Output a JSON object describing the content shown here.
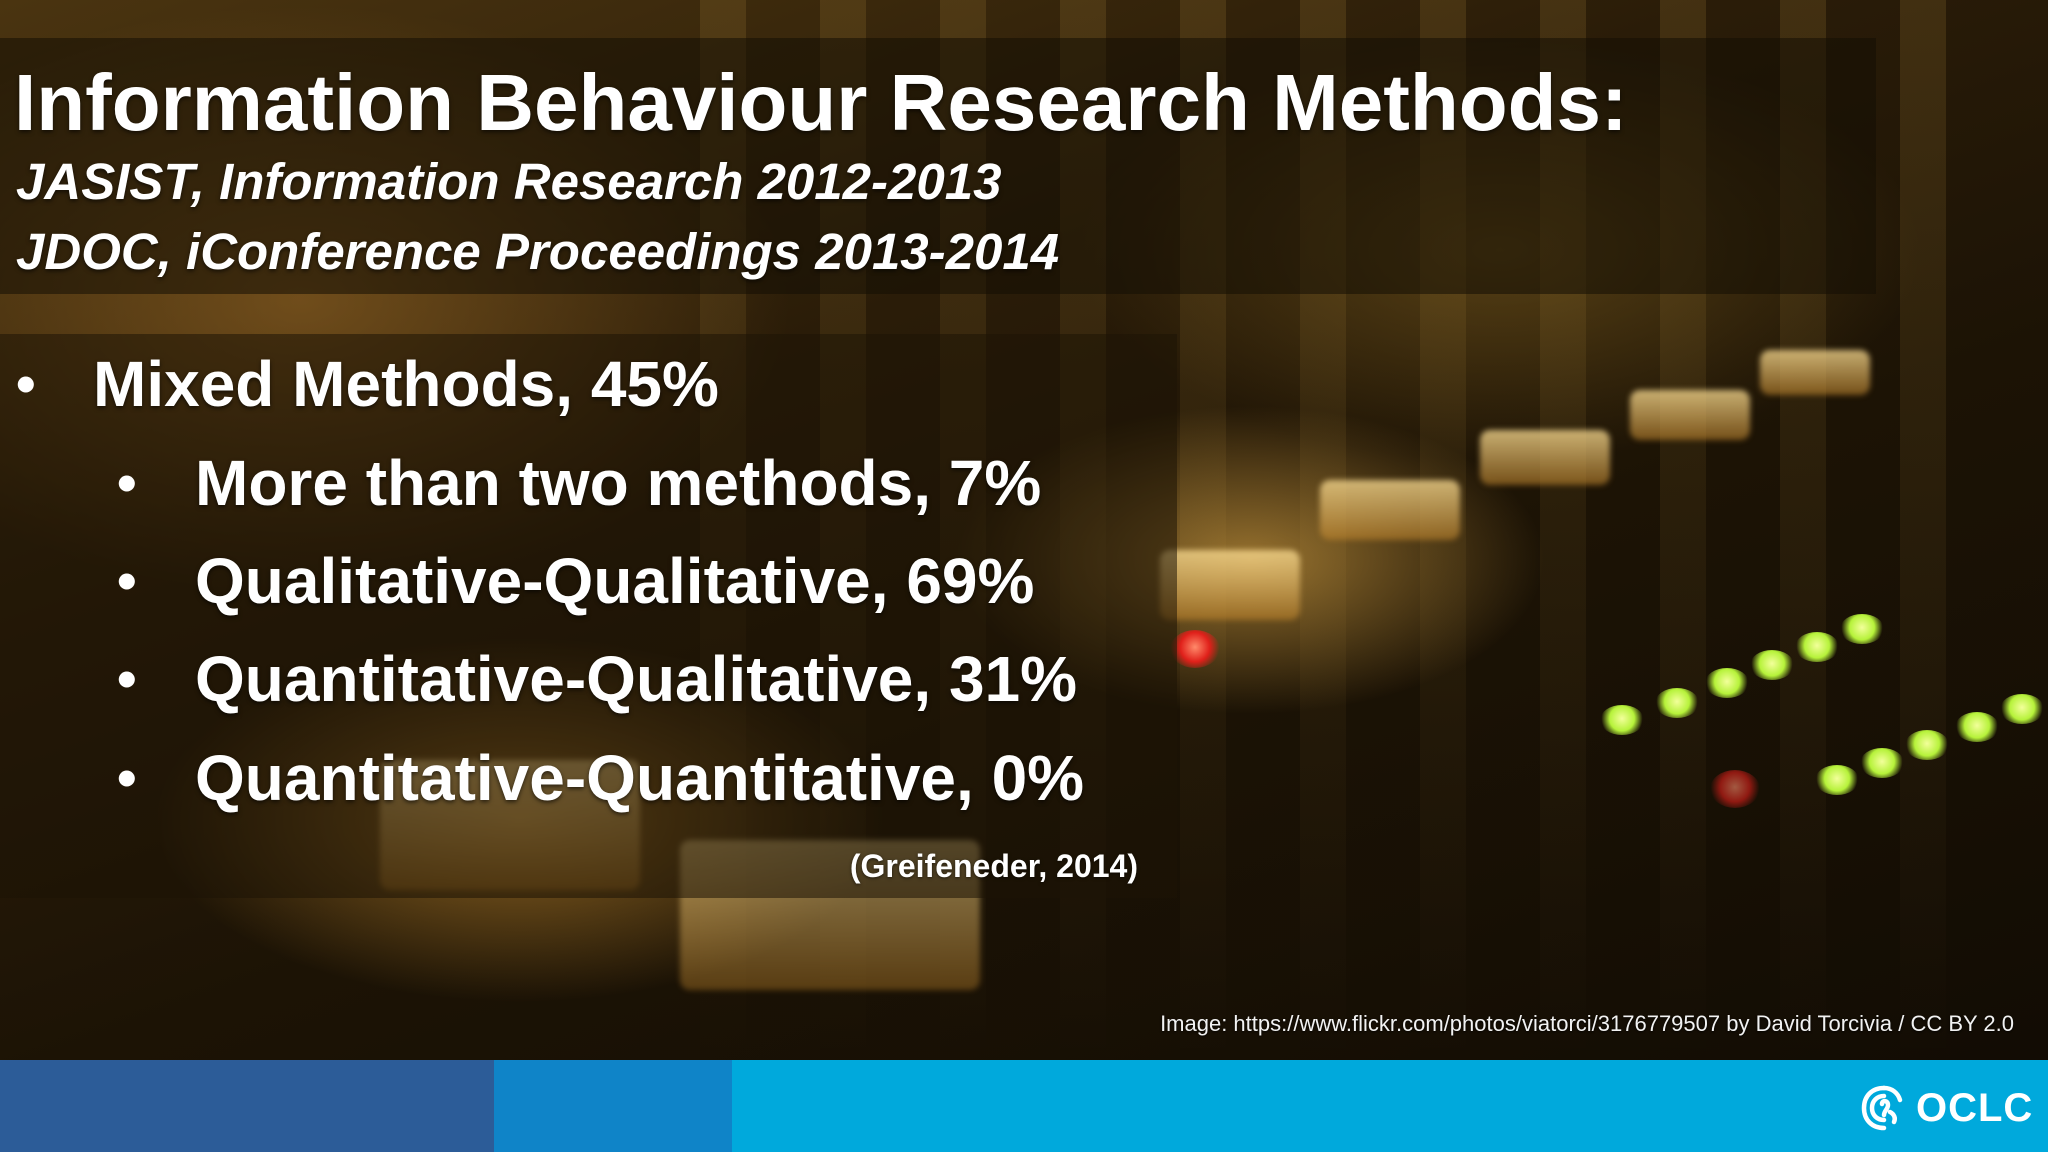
{
  "slide": {
    "title": "Information Behaviour Research Methods:",
    "subtitle_lines": [
      "JASIST, Information Research 2012-2013",
      "JDOC, iConference Proceedings 2013-2014"
    ],
    "bullets": [
      {
        "bullet": "•",
        "text": "Mixed Methods, 45%"
      },
      {
        "bullet": "•",
        "text": "More than two methods, 7%"
      },
      {
        "bullet": "•",
        "text": "Qualitative-Qualitative, 69%"
      },
      {
        "bullet": "•",
        "text": "Quantitative-Qualitative, 31%"
      },
      {
        "bullet": "•",
        "text": "Quantitative-Quantitative, 0%"
      }
    ],
    "citation": "(Greifeneder, 2014)",
    "image_credit": "Image: https://www.flickr.com/photos/viatorci/3176779507 by David Torcivia / CC BY 2.0"
  },
  "footer": {
    "logo_text": "OCLC",
    "logo_icon": "oclc-logo-icon",
    "colors": {
      "segment_dark": "#2c5c98",
      "segment_mid": "#0f84c8",
      "segment_light": "#00a9dc"
    }
  }
}
